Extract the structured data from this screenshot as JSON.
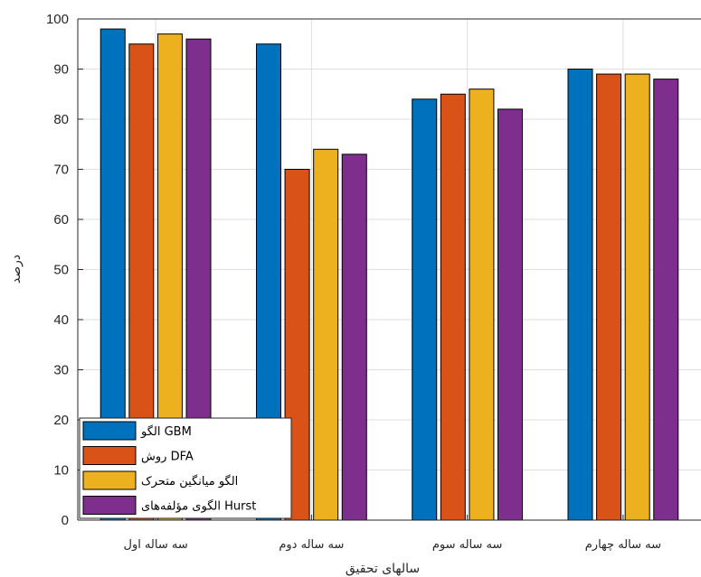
{
  "chart_data": {
    "type": "bar",
    "title": "",
    "xlabel": "سالهای تحقیق",
    "ylabel": "درصد",
    "categories": [
      "سه ساله اول",
      "سه ساله دوم",
      "سه ساله سوم",
      "سه ساله چهارم"
    ],
    "series": [
      {
        "name": "الگو  GBM",
        "color": "#0072BD",
        "values": [
          98,
          95,
          84,
          90
        ]
      },
      {
        "name": "روش DFA",
        "color": "#D95319",
        "values": [
          95,
          70,
          85,
          89
        ]
      },
      {
        "name": "الگو میانگین متحرک",
        "color": "#EDB120",
        "values": [
          97,
          74,
          86,
          89
        ]
      },
      {
        "name": "الگوی مؤلفه‌های Hurst",
        "color": "#7E2F8E",
        "values": [
          96,
          73,
          82,
          88
        ]
      }
    ],
    "ylim": [
      0,
      100
    ],
    "yticks": [
      0,
      10,
      20,
      30,
      40,
      50,
      60,
      70,
      80,
      90,
      100
    ],
    "grid": true,
    "legend_position": "bottom-left"
  }
}
